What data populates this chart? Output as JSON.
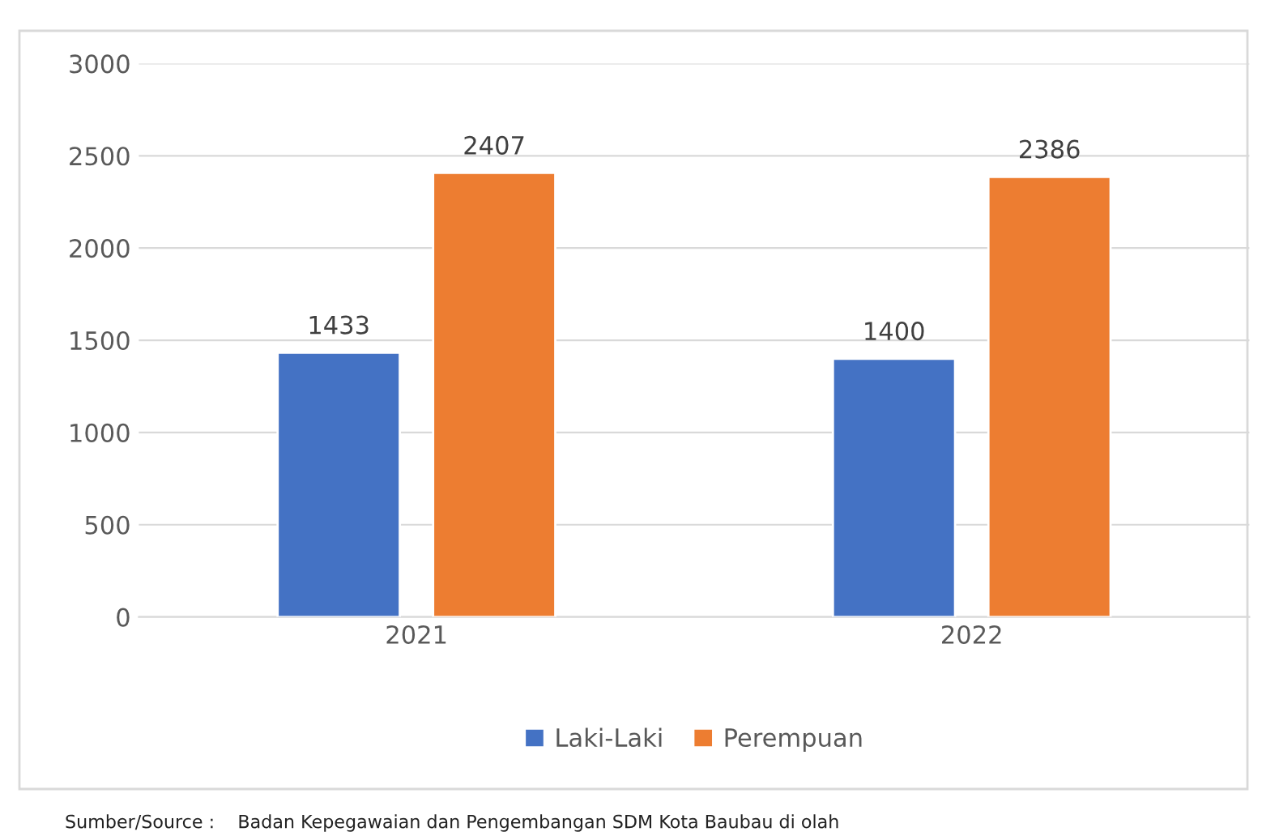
{
  "chart_data": {
    "type": "bar",
    "categories": [
      "2021",
      "2022"
    ],
    "series": [
      {
        "name": "Laki-Laki",
        "color": "#4472c4",
        "values": [
          1433,
          1400
        ]
      },
      {
        "name": "Perempuan",
        "color": "#ed7d31",
        "values": [
          2407,
          2386
        ]
      }
    ],
    "ylim": [
      0,
      3000
    ],
    "yticks": [
      0,
      500,
      1000,
      1500,
      2000,
      2500,
      3000
    ],
    "grid": "y",
    "legend": "bottom",
    "data_labels": true,
    "annotations": [
      "Sumber/Source :    Badan Kepegawaian dan Pengembangan SDM Kota Baubau di olah"
    ]
  }
}
